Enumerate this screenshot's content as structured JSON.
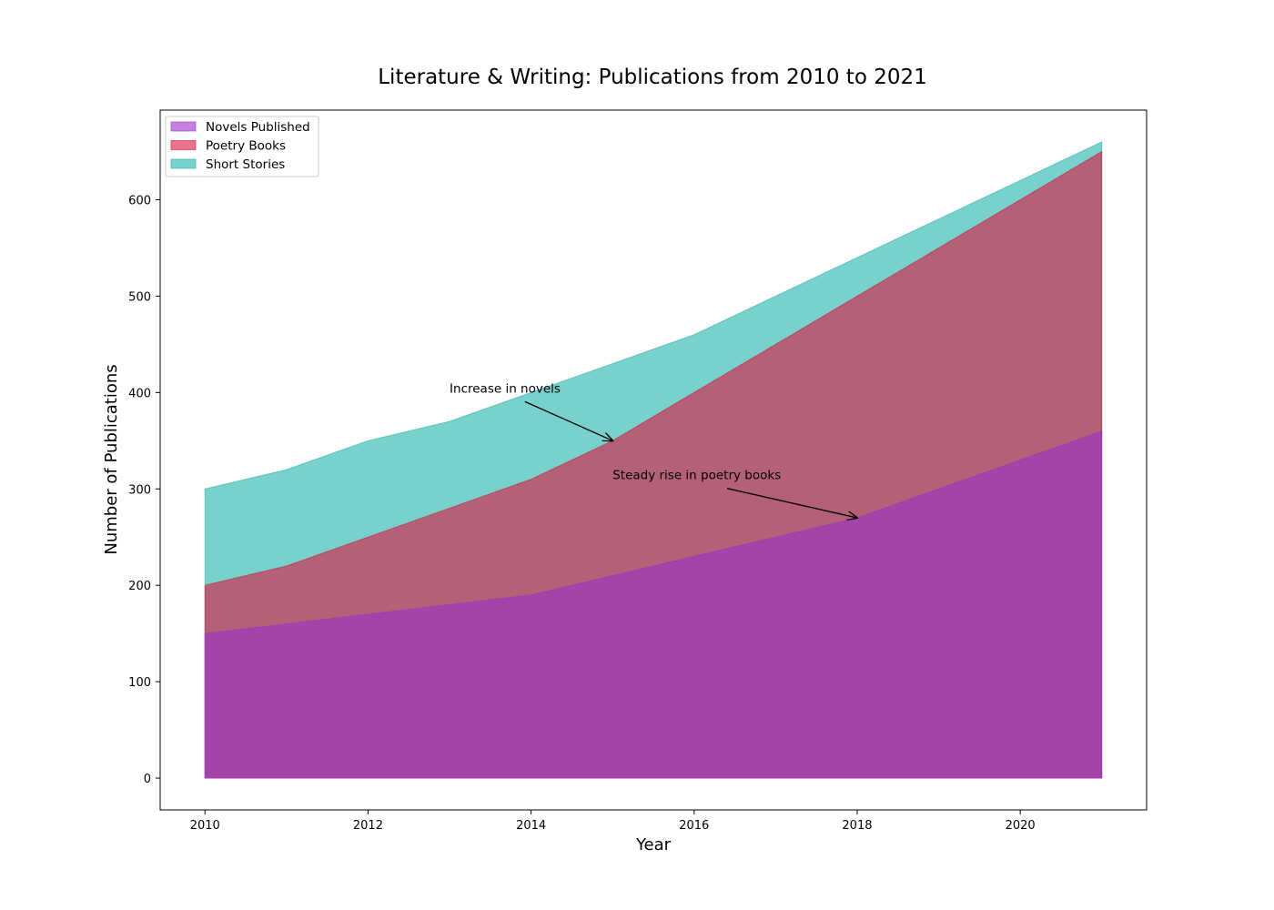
{
  "chart_data": {
    "type": "area",
    "title": "Literature & Writing: Publications from 2010 to 2021",
    "xlabel": "Year",
    "ylabel": "Number of Publications",
    "x": [
      2010,
      2011,
      2012,
      2013,
      2014,
      2015,
      2016,
      2017,
      2018,
      2019,
      2020,
      2021
    ],
    "xlim": [
      2009.45,
      2021.55
    ],
    "ylim": [
      -33,
      693
    ],
    "xticks": [
      2010,
      2012,
      2014,
      2016,
      2018,
      2020
    ],
    "yticks": [
      0,
      100,
      200,
      300,
      400,
      500,
      600
    ],
    "grid": false,
    "legend_position": "upper-left",
    "series": [
      {
        "name": "Novels Published",
        "color": "#9932cc",
        "values": [
          150,
          160,
          170,
          180,
          190,
          210,
          230,
          250,
          270,
          300,
          330,
          360
        ]
      },
      {
        "name": "Poetry Books",
        "color": "#dc143c",
        "values": [
          200,
          220,
          250,
          280,
          310,
          350,
          400,
          450,
          500,
          550,
          600,
          650
        ]
      },
      {
        "name": "Short Stories",
        "color": "#20b2aa",
        "values": [
          300,
          320,
          350,
          370,
          400,
          430,
          460,
          500,
          540,
          580,
          620,
          660
        ]
      }
    ],
    "annotations": [
      {
        "text": "Increase in novels",
        "xy": [
          2015,
          350
        ],
        "xytext": [
          2013,
          400
        ]
      },
      {
        "text": "Steady rise in poetry books",
        "xy": [
          2018,
          270
        ],
        "xytext": [
          2015,
          310
        ]
      }
    ]
  }
}
